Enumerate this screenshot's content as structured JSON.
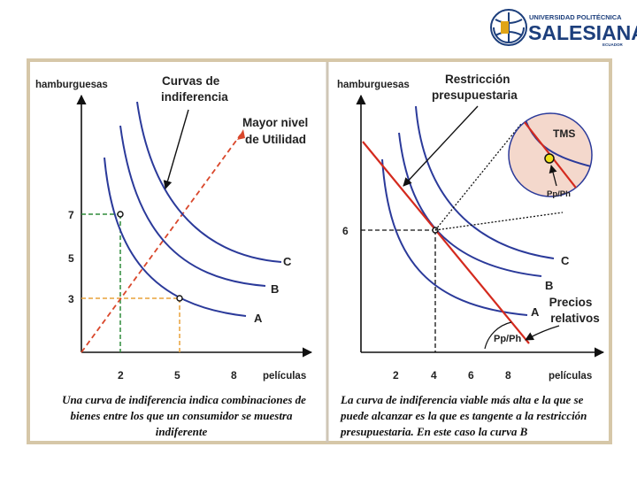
{
  "logo": {
    "line1": "UNIVERSIDAD POLITÉCNICA",
    "line2": "SALESIANA",
    "line3": "ECUADOR"
  },
  "left_panel": {
    "y_axis_label": "hamburguesas",
    "x_axis_label": "películas",
    "annotation_curves": "Curvas de",
    "annotation_curves_2": "indiferencia",
    "annotation_utility": "Mayor nivel",
    "annotation_utility_2": "de Utilidad",
    "y_ticks": [
      "7",
      "5",
      "3"
    ],
    "x_ticks": [
      "2",
      "5",
      "8"
    ],
    "curve_labels": [
      "A",
      "B",
      "C"
    ],
    "caption_lines": [
      "Una curva de indiferencia indica combinaciones de",
      "bienes entre los que un consumidor se muestra",
      "indiferente"
    ]
  },
  "right_panel": {
    "y_axis_label": "hamburguesas",
    "x_axis_label": "películas",
    "annotation_budget": "Restricción",
    "annotation_budget_2": "presupuestaria",
    "annotation_mrs": "TMS",
    "annotation_ratio": "Pp/Ph",
    "annotation_ratio_axis": "Pp/Ph",
    "annotation_prices": "Precios",
    "annotation_prices_2": "relativos",
    "y_ticks": [
      "6"
    ],
    "x_ticks": [
      "2",
      "4",
      "6",
      "8"
    ],
    "curve_labels": [
      "A",
      "B",
      "C"
    ],
    "caption_lines": [
      "La curva de indiferencia viable más alta e la que se",
      "puede alcanzar es la que es tangente a la restricción",
      "presupuestaria. En este caso la curva B"
    ]
  },
  "colors": {
    "curve": "#2b3a9a",
    "budget_line": "#d42a1e",
    "utility_ray": "#d9472b",
    "guide_green": "#2e8b3a",
    "guide_orange": "#e8a23a",
    "frame": "#d6c7a8",
    "logo_blue": "#1d3f7c"
  }
}
